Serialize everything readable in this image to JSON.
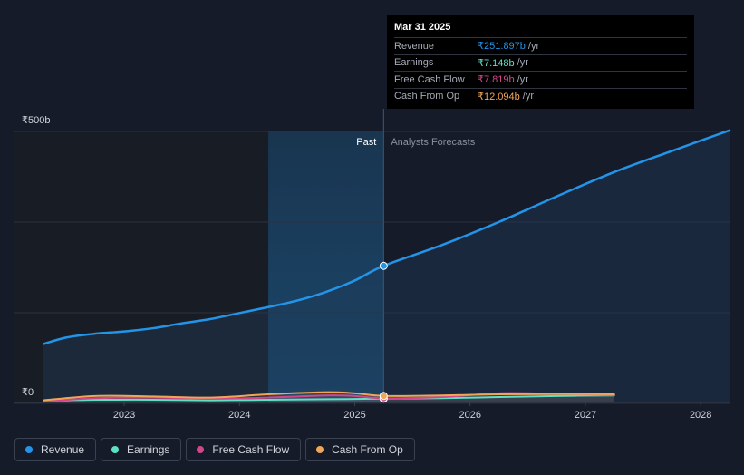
{
  "chart_data": {
    "type": "line",
    "currency": "₹",
    "y_labels": [
      "₹500b",
      "₹0"
    ],
    "ylim": [
      0,
      500
    ],
    "xlim": [
      2022.3,
      2028.25
    ],
    "x_ticks": [
      "2023",
      "2024",
      "2025",
      "2026",
      "2027",
      "2028"
    ],
    "x_tick_values": [
      2023,
      2024,
      2025,
      2026,
      2027,
      2028
    ],
    "past_start": 2024.25,
    "divider_x": 2025.25,
    "past_label": "Past",
    "forecast_label": "Analysts Forecasts",
    "series": [
      {
        "name": "Revenue",
        "color": "#2394e8",
        "x": [
          2022.3,
          2022.5,
          2022.75,
          2023.0,
          2023.25,
          2023.5,
          2023.75,
          2024.0,
          2024.25,
          2024.5,
          2024.75,
          2025.0,
          2025.25,
          2025.75,
          2026.25,
          2026.75,
          2027.25,
          2027.75,
          2028.25
        ],
        "y": [
          108,
          120,
          127,
          131,
          137,
          146,
          154,
          165,
          176,
          188,
          204,
          225,
          252,
          290,
          333,
          380,
          425,
          464,
          502
        ]
      },
      {
        "name": "Earnings",
        "color": "#5de0c3",
        "x": [
          2022.3,
          2022.75,
          2023.25,
          2023.75,
          2024.25,
          2024.75,
          2025.0,
          2025.25,
          2025.75,
          2026.25,
          2026.75,
          2027.25
        ],
        "y": [
          3,
          5,
          5,
          4,
          5,
          6,
          6.5,
          7.1,
          8,
          10,
          12,
          13
        ]
      },
      {
        "name": "Free Cash Flow",
        "color": "#d2468a",
        "x": [
          2022.3,
          2022.75,
          2023.25,
          2023.75,
          2024.25,
          2024.75,
          2025.0,
          2025.25,
          2025.75,
          2026.25,
          2026.75,
          2027.25
        ],
        "y": [
          2,
          8,
          9,
          7,
          9,
          13,
          12,
          7.8,
          10,
          17,
          16,
          14
        ]
      },
      {
        "name": "Cash From Op",
        "color": "#f0a658",
        "x": [
          2022.3,
          2022.75,
          2023.25,
          2023.75,
          2024.25,
          2024.75,
          2025.0,
          2025.25,
          2025.75,
          2026.25,
          2026.75,
          2027.25
        ],
        "y": [
          4,
          12,
          11,
          9,
          15,
          19,
          17,
          12.1,
          13,
          15,
          15.5,
          15
        ]
      }
    ]
  },
  "tooltip": {
    "date": "Mar 31 2025",
    "rows": [
      {
        "label": "Revenue",
        "value": "₹251.897b",
        "unit": "/yr",
        "color": "#2394e8"
      },
      {
        "label": "Earnings",
        "value": "₹7.148b",
        "unit": "/yr",
        "color": "#5de0c3"
      },
      {
        "label": "Free Cash Flow",
        "value": "₹7.819b",
        "unit": "/yr",
        "color": "#d2468a"
      },
      {
        "label": "Cash From Op",
        "value": "₹12.094b",
        "unit": "/yr",
        "color": "#f0a658"
      }
    ]
  },
  "legend": [
    {
      "label": "Revenue",
      "color": "#2394e8"
    },
    {
      "label": "Earnings",
      "color": "#5de0c3"
    },
    {
      "label": "Free Cash Flow",
      "color": "#d2468a"
    },
    {
      "label": "Cash From Op",
      "color": "#f0a658"
    }
  ]
}
